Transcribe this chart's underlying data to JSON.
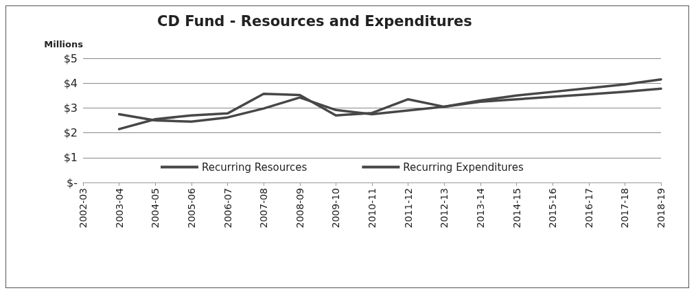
{
  "chart_data": {
    "type": "line",
    "title": "CD Fund - Resources and Expenditures",
    "ylabel": "Millions",
    "categories": [
      "2002-03",
      "2003-04",
      "2004-05",
      "2005-06",
      "2006-07",
      "2007-08",
      "2008-09",
      "2009-10",
      "2010-11",
      "2011-12",
      "2012-13",
      "2013-14",
      "2014-15",
      "2015-16",
      "2016-17",
      "2017-18",
      "2018-19"
    ],
    "series": [
      {
        "name": "Recurring Resources",
        "color": "#474747",
        "values": [
          null,
          2.75,
          2.5,
          2.45,
          2.62,
          2.98,
          3.42,
          2.92,
          2.75,
          2.9,
          3.05,
          3.25,
          3.35,
          3.45,
          3.55,
          3.65,
          3.78
        ]
      },
      {
        "name": "Recurring Expenditures",
        "color": "#474747",
        "values": [
          null,
          2.15,
          2.55,
          2.7,
          2.78,
          3.57,
          3.52,
          2.7,
          2.8,
          3.35,
          3.05,
          3.3,
          3.5,
          3.65,
          3.8,
          3.95,
          4.15
        ]
      }
    ],
    "ylim": [
      0,
      5
    ],
    "yticks": [
      {
        "value": 0,
        "label": "$-"
      },
      {
        "value": 1,
        "label": "$1"
      },
      {
        "value": 2,
        "label": "$2"
      },
      {
        "value": 3,
        "label": "$3"
      },
      {
        "value": 4,
        "label": "$4"
      },
      {
        "value": 5,
        "label": "$5"
      }
    ],
    "grid": "y",
    "legend": "bottom",
    "marker": "none",
    "line_style": "solid"
  }
}
